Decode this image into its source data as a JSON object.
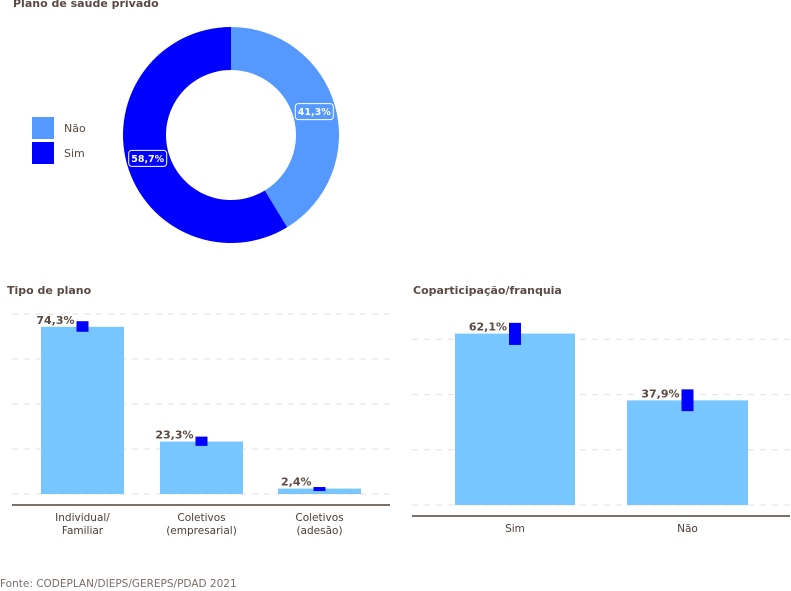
{
  "chart_data": [
    {
      "type": "pie",
      "variant": "donut",
      "title": "Plano de saúde privado",
      "categories": [
        "Não",
        "Sim"
      ],
      "values": [
        41.3,
        58.7
      ],
      "labels": [
        "41,3%",
        "58,7%"
      ],
      "colors": [
        "#5599ff",
        "#0000ff"
      ],
      "legend": "left",
      "legend_entries": [
        "Não",
        "Sim"
      ]
    },
    {
      "type": "bar",
      "title": "Tipo de plano",
      "categories": [
        "Individual/\nFamiliar",
        "Coletivos\n(empresarial)",
        "Coletivos\n(adesão)"
      ],
      "category_lines": [
        [
          "Individual/",
          "Familiar"
        ],
        [
          "Coletivos",
          "(empresarial)"
        ],
        [
          "Coletivos",
          "(adesão)"
        ]
      ],
      "values": [
        74.3,
        23.3,
        2.4
      ],
      "labels": [
        "74,3%",
        "23,3%",
        "2,4%"
      ],
      "error_bars": [
        [
          72.1,
          76.8
        ],
        [
          21.4,
          25.5
        ],
        [
          1.8,
          3.1
        ]
      ],
      "bar_color": "#77c6ff",
      "error_color": "#0000ff",
      "ylim": [
        0,
        80
      ],
      "grid_values": [
        0,
        20,
        40,
        60,
        80
      ],
      "grid": true,
      "xlabel": "",
      "ylabel": ""
    },
    {
      "type": "bar",
      "title": "Coparticipação/franquia",
      "categories": [
        "Sim",
        "Não"
      ],
      "category_lines": [
        [
          "Sim"
        ],
        [
          "Não"
        ]
      ],
      "values": [
        62.1,
        37.9
      ],
      "labels": [
        "62,1%",
        "37,9%"
      ],
      "error_bars": [
        [
          58.0,
          66.0
        ],
        [
          34.0,
          41.9
        ]
      ],
      "bar_color": "#77c6ff",
      "error_color": "#0000ff",
      "ylim": [
        0,
        60
      ],
      "grid_values": [
        0,
        20,
        40,
        60
      ],
      "grid": true,
      "xlabel": "",
      "ylabel": ""
    }
  ],
  "footer": {
    "source": "Fonte: CODEPLAN/DIEPS/GEREPS/PDAD 2021"
  }
}
